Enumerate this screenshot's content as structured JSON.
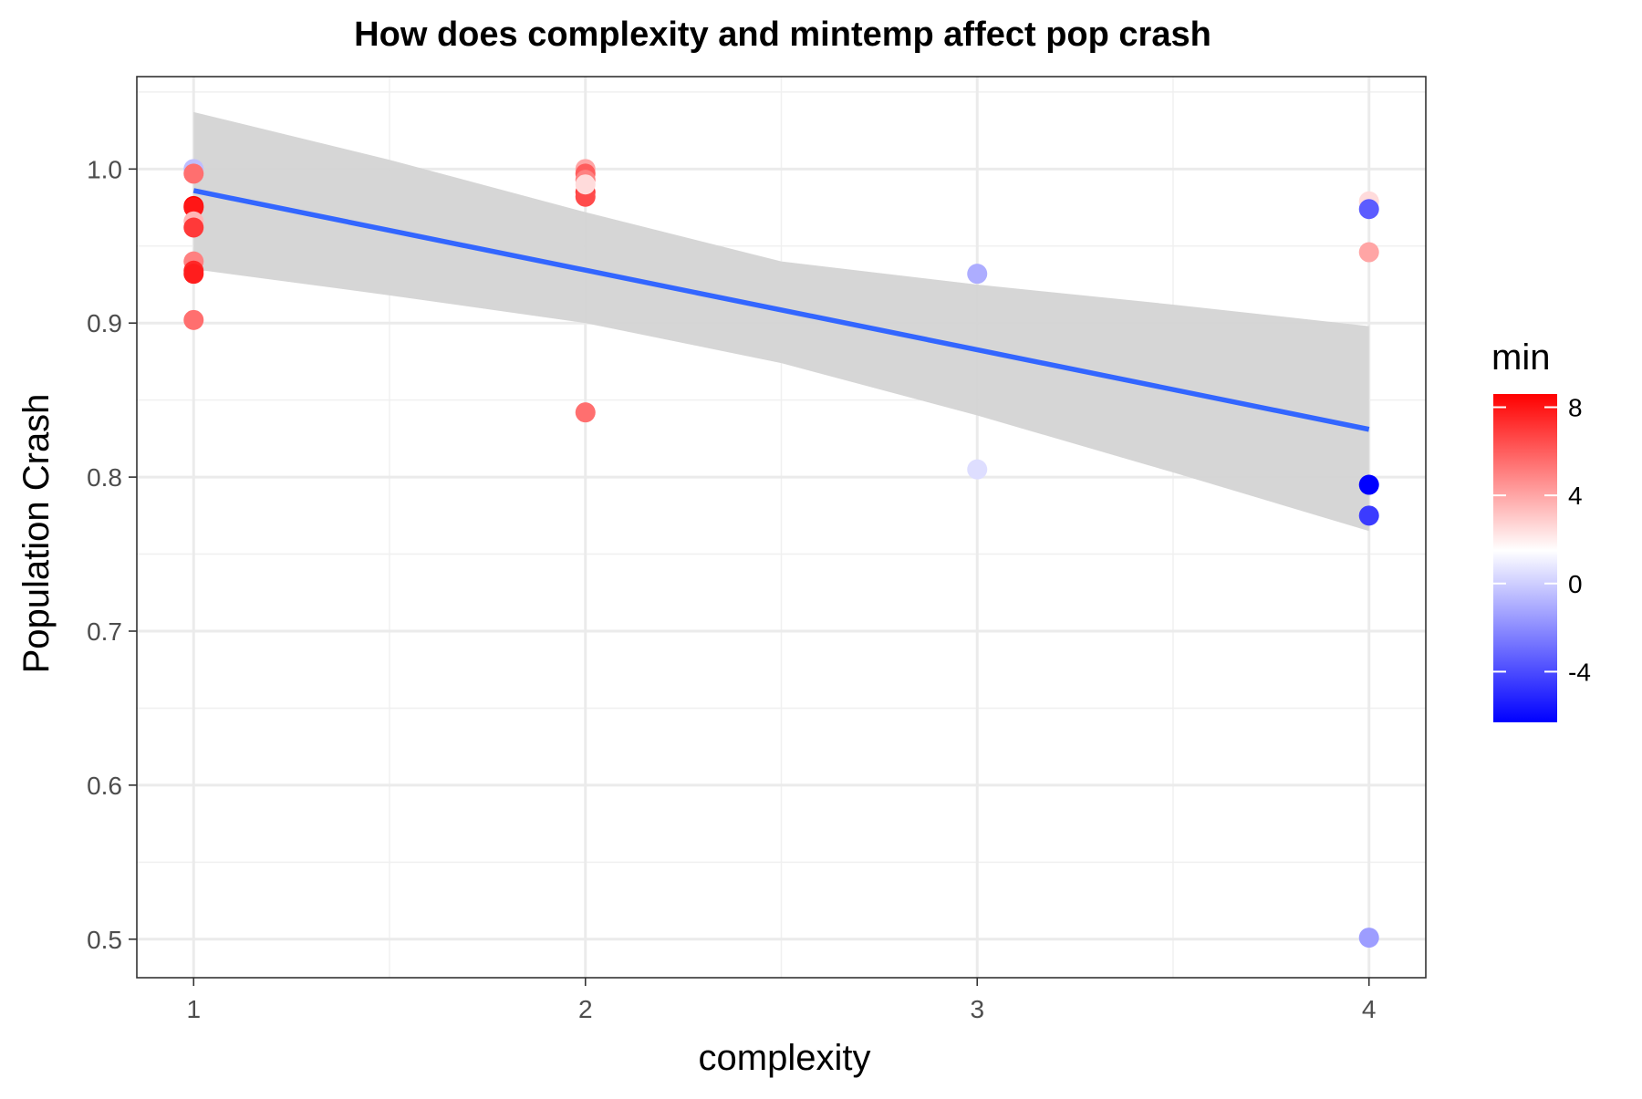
{
  "chart_data": {
    "type": "scatter",
    "title": "How does complexity and mintemp affect pop crash",
    "xlabel": "complexity",
    "ylabel": "Population Crash",
    "xlim": [
      0.855,
      4.145
    ],
    "ylim": [
      0.475,
      1.06
    ],
    "x_ticks": [
      1,
      2,
      3,
      4
    ],
    "x_tick_labels": [
      "1",
      "2",
      "3",
      "4"
    ],
    "x_minor_ticks": [
      1.5,
      2.5,
      3.5
    ],
    "y_ticks": [
      0.5,
      0.6,
      0.7,
      0.8,
      0.9,
      1.0
    ],
    "y_tick_labels": [
      "0.5",
      "0.6",
      "0.7",
      "0.8",
      "0.9",
      "1.0"
    ],
    "y_minor_ticks": [
      0.55,
      0.65,
      0.75,
      0.85,
      0.95,
      1.05
    ],
    "grid": true,
    "legend": {
      "title": "min",
      "position": "right",
      "type": "colorbar",
      "range": [
        -6.3,
        8.6
      ],
      "ticks": [
        -4,
        0,
        4,
        8
      ],
      "tick_labels": [
        "-4",
        "0",
        "4",
        "8"
      ],
      "midpoint": 1.5,
      "low_color": "#0000ff",
      "mid_color": "#ffffff",
      "high_color": "#ff0000"
    },
    "points": [
      {
        "x": 1,
        "y": 1.0,
        "min": -0.5
      },
      {
        "x": 1,
        "y": 0.997,
        "min": 5.5
      },
      {
        "x": 1,
        "y": 0.976,
        "min": 8.5
      },
      {
        "x": 1,
        "y": 0.975,
        "min": 8.0
      },
      {
        "x": 1,
        "y": 0.966,
        "min": 3.5
      },
      {
        "x": 1,
        "y": 0.962,
        "min": 7.0
      },
      {
        "x": 1,
        "y": 0.94,
        "min": 5.0
      },
      {
        "x": 1,
        "y": 0.934,
        "min": 7.5
      },
      {
        "x": 1,
        "y": 0.932,
        "min": 7.8
      },
      {
        "x": 1,
        "y": 0.902,
        "min": 5.5
      },
      {
        "x": 2,
        "y": 1.0,
        "min": 4.0
      },
      {
        "x": 2,
        "y": 0.997,
        "min": 6.0
      },
      {
        "x": 2,
        "y": 0.993,
        "min": 5.0
      },
      {
        "x": 2,
        "y": 0.985,
        "min": 7.0
      },
      {
        "x": 2,
        "y": 0.982,
        "min": 6.5
      },
      {
        "x": 2,
        "y": 0.99,
        "min": 2.5
      },
      {
        "x": 2,
        "y": 0.842,
        "min": 5.5
      },
      {
        "x": 3,
        "y": 0.932,
        "min": -1.0
      },
      {
        "x": 3,
        "y": 0.805,
        "min": 0.5
      },
      {
        "x": 4,
        "y": 0.979,
        "min": 2.5
      },
      {
        "x": 4,
        "y": 0.974,
        "min": -3.5
      },
      {
        "x": 4,
        "y": 0.946,
        "min": 4.0
      },
      {
        "x": 4,
        "y": 0.795,
        "min": -6.3
      },
      {
        "x": 4,
        "y": 0.775,
        "min": -4.5
      },
      {
        "x": 4,
        "y": 0.501,
        "min": -1.5
      }
    ],
    "fit_line": {
      "method": "lm",
      "color": "#3366ff",
      "x": [
        1,
        4
      ],
      "y": [
        0.986,
        0.831
      ]
    },
    "confidence_band": {
      "color": "#d4d4d4",
      "x": [
        1,
        1.5,
        2,
        2.5,
        3,
        3.5,
        4
      ],
      "lower": [
        0.935,
        0.918,
        0.9,
        0.874,
        0.84,
        0.803,
        0.765
      ],
      "upper": [
        1.037,
        1.006,
        0.972,
        0.94,
        0.925,
        0.912,
        0.898
      ]
    }
  }
}
